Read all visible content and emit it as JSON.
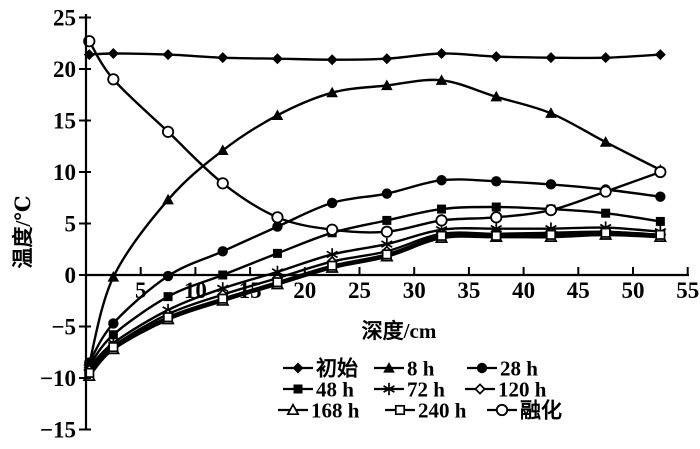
{
  "chart_data": {
    "type": "line",
    "title": "",
    "xlabel": "深度/cm",
    "ylabel": "温度/℃",
    "xlim": [
      0,
      55
    ],
    "ylim": [
      -15,
      25
    ],
    "x_ticks": [
      5,
      10,
      15,
      20,
      25,
      30,
      35,
      40,
      45,
      50,
      55
    ],
    "y_ticks": [
      25,
      20,
      15,
      10,
      5,
      0,
      -5,
      -10,
      -15
    ],
    "grid": false,
    "legend_position": "bottom-center",
    "line_color": "#000000",
    "background": "#ffffff",
    "x": [
      0.3,
      2.5,
      7.5,
      12.5,
      17.5,
      22.5,
      27.5,
      32.5,
      37.5,
      42.5,
      47.5,
      52.5
    ],
    "series": [
      {
        "id": "initial",
        "label": "初始",
        "marker": "diamond-filled",
        "values": [
          21.4,
          21.5,
          21.4,
          21.1,
          21.0,
          20.9,
          21.0,
          21.5,
          21.2,
          21.1,
          21.1,
          21.4
        ]
      },
      {
        "id": "8h",
        "label": "8 h",
        "marker": "triangle-filled",
        "values": [
          -8.6,
          -0.2,
          7.3,
          12.1,
          15.5,
          17.7,
          18.4,
          18.9,
          17.3,
          15.7,
          12.9,
          10.2
        ]
      },
      {
        "id": "28h",
        "label": "28 h",
        "marker": "circle-filled",
        "values": [
          -8.5,
          -4.7,
          -0.1,
          2.3,
          4.7,
          7.0,
          7.9,
          9.2,
          9.1,
          8.8,
          8.3,
          7.6
        ]
      },
      {
        "id": "48h",
        "label": "48 h",
        "marker": "square-filled",
        "values": [
          -8.8,
          -5.8,
          -2.1,
          0.0,
          2.1,
          4.1,
          5.3,
          6.4,
          6.6,
          6.4,
          6.0,
          5.2
        ]
      },
      {
        "id": "72h",
        "label": "72 h",
        "marker": "asterisk",
        "values": [
          -9.0,
          -6.6,
          -3.4,
          -1.3,
          0.3,
          2.0,
          3.0,
          4.4,
          4.5,
          4.5,
          4.6,
          4.2
        ]
      },
      {
        "id": "120h",
        "label": "120 h",
        "marker": "diamond-open",
        "values": [
          -9.2,
          -6.9,
          -3.8,
          -1.9,
          -0.3,
          1.3,
          2.3,
          4.0,
          4.0,
          4.1,
          4.2,
          3.9
        ]
      },
      {
        "id": "168h",
        "label": "168 h",
        "marker": "triangle-open",
        "values": [
          -9.8,
          -7.2,
          -4.3,
          -2.5,
          -0.9,
          0.7,
          1.8,
          3.6,
          3.7,
          3.7,
          3.9,
          3.7
        ]
      },
      {
        "id": "240h",
        "label": "240 h",
        "marker": "square-open",
        "values": [
          -9.5,
          -7.0,
          -4.1,
          -2.3,
          -0.7,
          0.9,
          2.0,
          3.8,
          3.8,
          3.9,
          4.1,
          3.9
        ]
      },
      {
        "id": "melt",
        "label": "融化",
        "marker": "circle-open",
        "values": [
          22.7,
          19.0,
          13.9,
          8.9,
          5.6,
          4.4,
          4.2,
          5.3,
          5.6,
          6.3,
          8.1,
          10.0
        ]
      }
    ]
  }
}
